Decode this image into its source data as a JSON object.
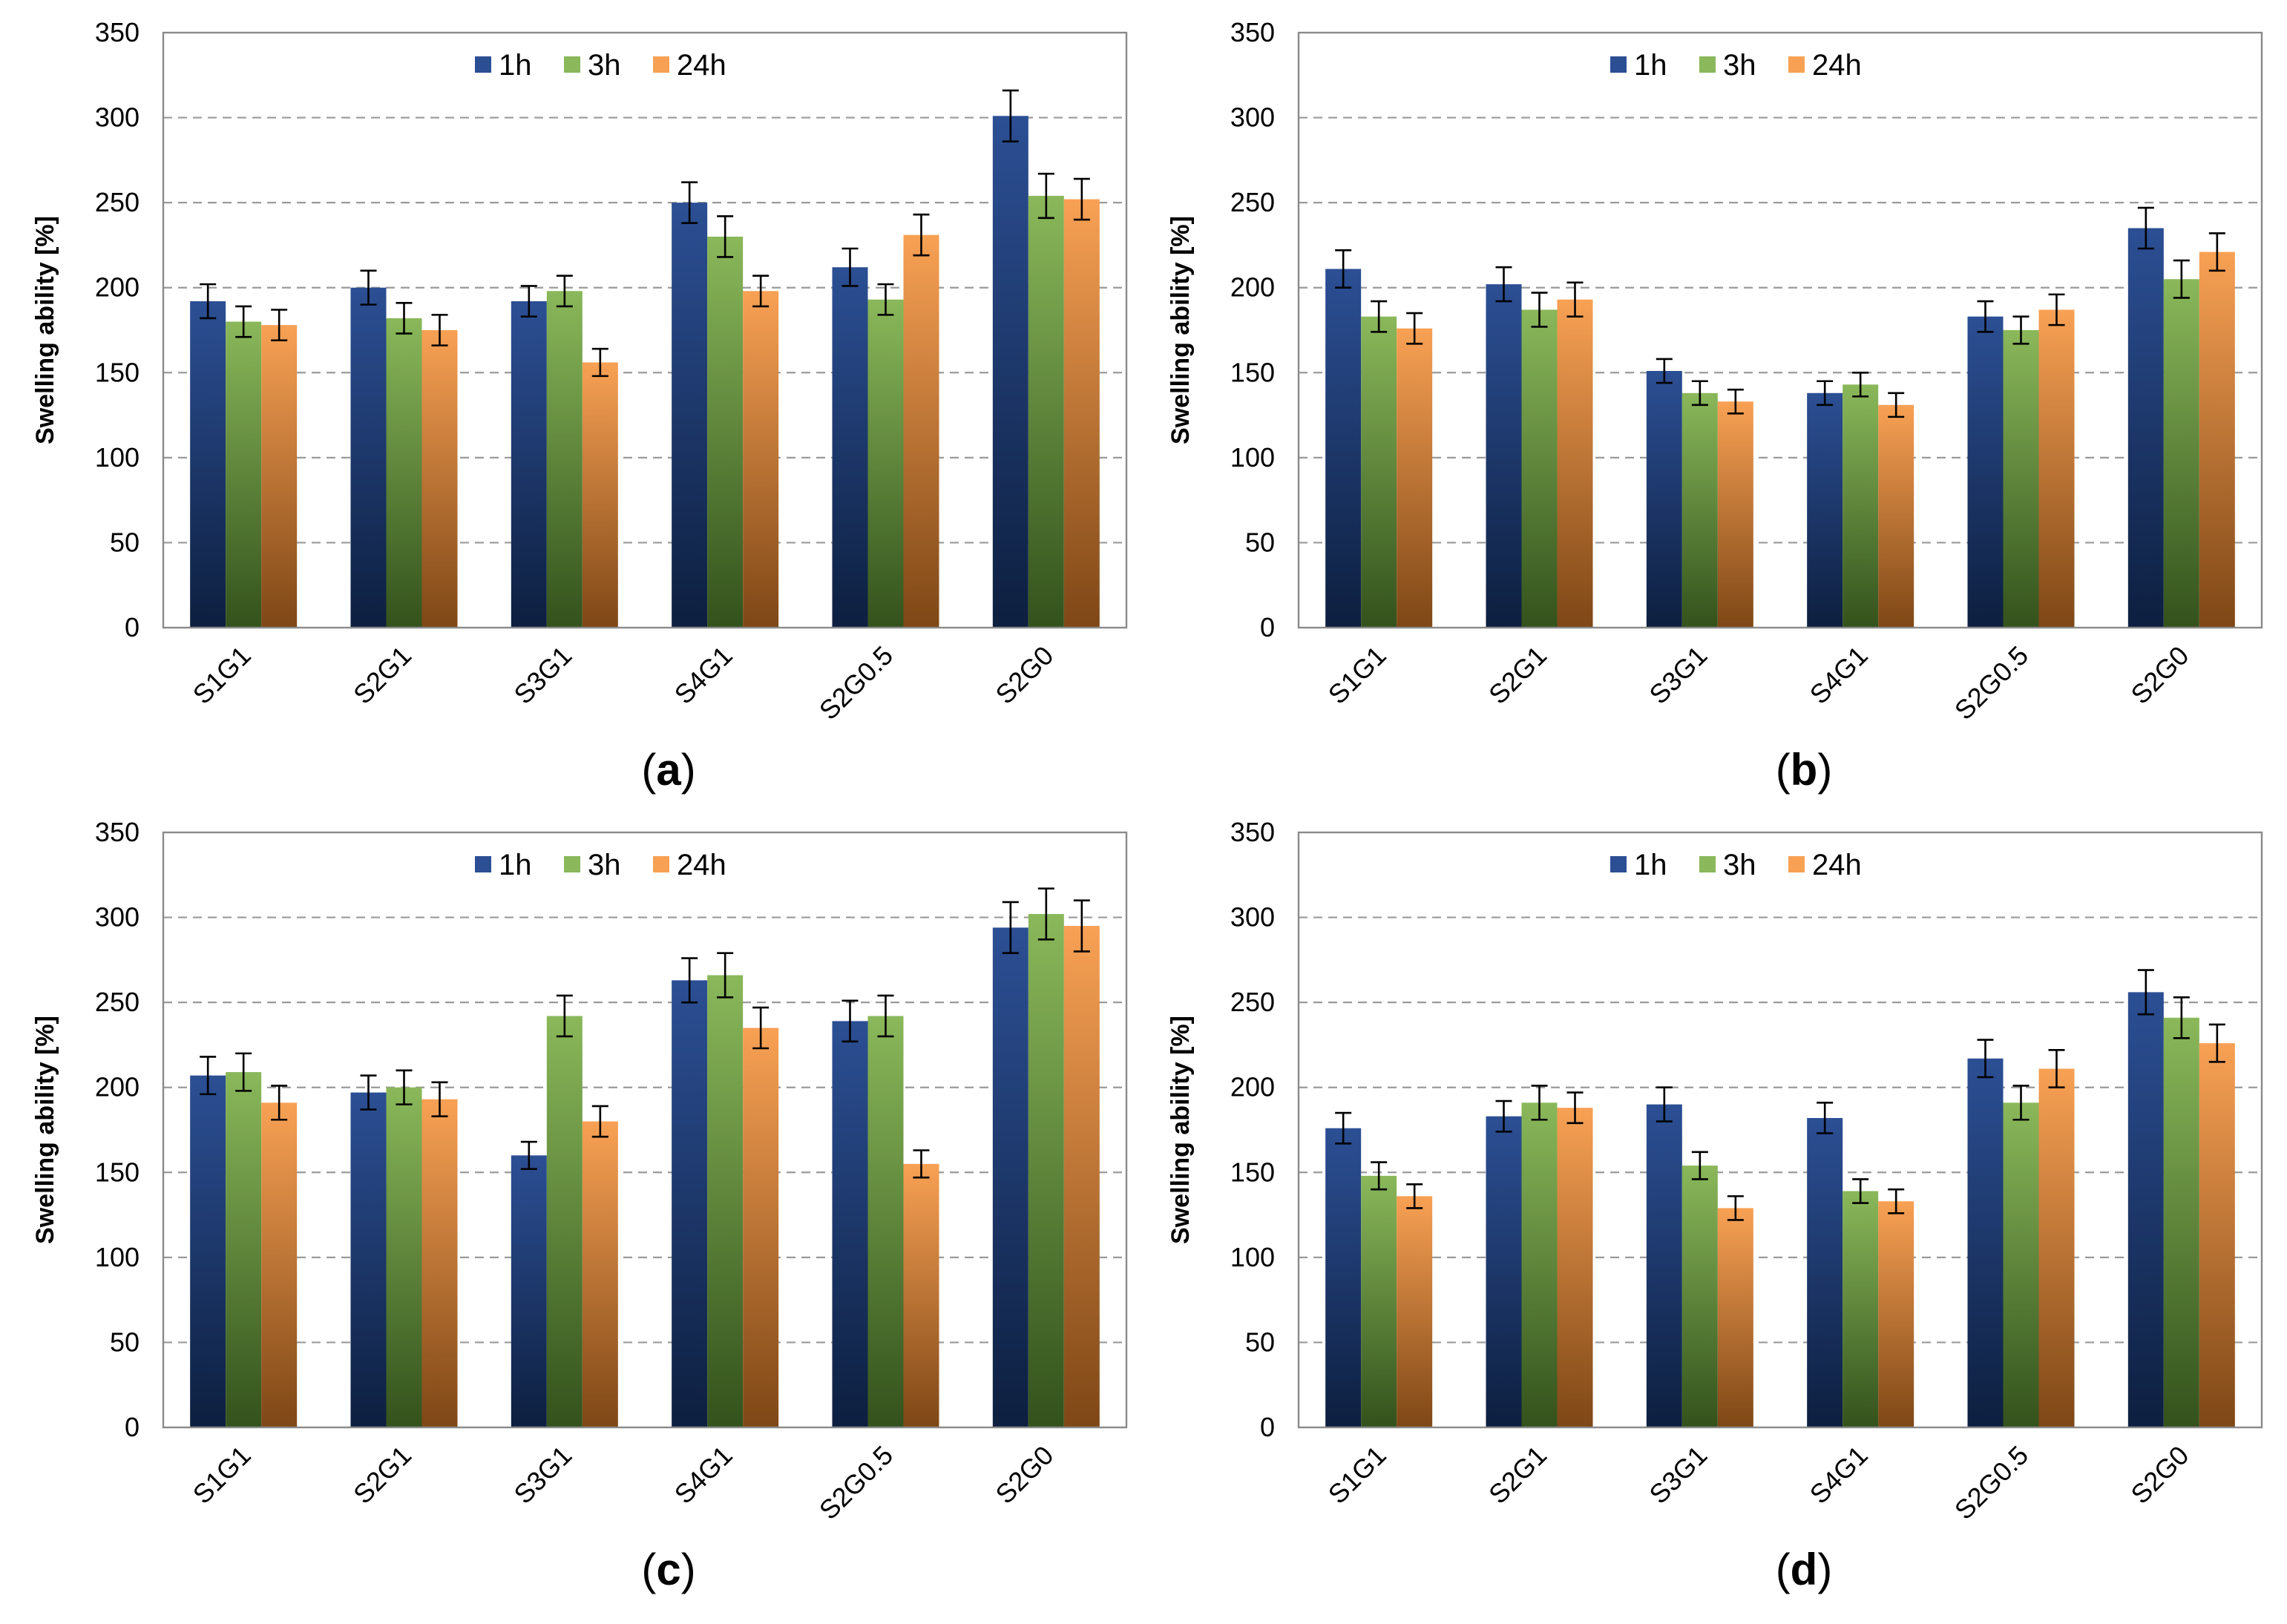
{
  "chart_data": [
    {
      "type": "bar",
      "panel": "(a)",
      "ylabel": "Swelling ability [%]",
      "ylim": [
        0,
        350
      ],
      "yticks": [
        0,
        50,
        100,
        150,
        200,
        250,
        300,
        350
      ],
      "grid": true,
      "legend_position": "top-center",
      "categories": [
        "S1G1",
        "S2G1",
        "S3G1",
        "S4G1",
        "S2G0.5",
        "S2G0"
      ],
      "series": [
        {
          "name": "1h",
          "values": [
            192,
            200,
            192,
            250,
            212,
            301
          ],
          "errors": [
            10,
            10,
            9,
            12,
            11,
            15
          ]
        },
        {
          "name": "3h",
          "values": [
            180,
            182,
            198,
            230,
            193,
            254
          ],
          "errors": [
            9,
            9,
            9,
            12,
            9,
            13
          ]
        },
        {
          "name": "24h",
          "values": [
            178,
            175,
            156,
            198,
            231,
            252
          ],
          "errors": [
            9,
            9,
            8,
            9,
            12,
            12
          ]
        }
      ]
    },
    {
      "type": "bar",
      "panel": "(b)",
      "ylabel": "Swelling ability [%]",
      "ylim": [
        0,
        350
      ],
      "yticks": [
        0,
        50,
        100,
        150,
        200,
        250,
        300,
        350
      ],
      "grid": true,
      "legend_position": "top-center",
      "categories": [
        "S1G1",
        "S2G1",
        "S3G1",
        "S4G1",
        "S2G0.5",
        "S2G0"
      ],
      "series": [
        {
          "name": "1h",
          "values": [
            211,
            202,
            151,
            138,
            183,
            235
          ],
          "errors": [
            11,
            10,
            7,
            7,
            9,
            12
          ]
        },
        {
          "name": "3h",
          "values": [
            183,
            187,
            138,
            143,
            175,
            205
          ],
          "errors": [
            9,
            10,
            7,
            7,
            8,
            11
          ]
        },
        {
          "name": "24h",
          "values": [
            176,
            193,
            133,
            131,
            187,
            221
          ],
          "errors": [
            9,
            10,
            7,
            7,
            9,
            11
          ]
        }
      ]
    },
    {
      "type": "bar",
      "panel": "(c)",
      "ylabel": "Swelling ability [%]",
      "ylim": [
        0,
        350
      ],
      "yticks": [
        0,
        50,
        100,
        150,
        200,
        250,
        300,
        350
      ],
      "grid": true,
      "legend_position": "top-center",
      "categories": [
        "S1G1",
        "S2G1",
        "S3G1",
        "S4G1",
        "S2G0.5",
        "S2G0"
      ],
      "series": [
        {
          "name": "1h",
          "values": [
            207,
            197,
            160,
            263,
            239,
            294
          ],
          "errors": [
            11,
            10,
            8,
            13,
            12,
            15
          ]
        },
        {
          "name": "3h",
          "values": [
            209,
            200,
            242,
            266,
            242,
            302
          ],
          "errors": [
            11,
            10,
            12,
            13,
            12,
            15
          ]
        },
        {
          "name": "24h",
          "values": [
            191,
            193,
            180,
            235,
            155,
            295
          ],
          "errors": [
            10,
            10,
            9,
            12,
            8,
            15
          ]
        }
      ]
    },
    {
      "type": "bar",
      "panel": "(d)",
      "ylabel": "Swelling ability [%]",
      "ylim": [
        0,
        350
      ],
      "yticks": [
        0,
        50,
        100,
        150,
        200,
        250,
        300,
        350
      ],
      "grid": true,
      "legend_position": "top-center",
      "categories": [
        "S1G1",
        "S2G1",
        "S3G1",
        "S4G1",
        "S2G0.5",
        "S2G0"
      ],
      "series": [
        {
          "name": "1h",
          "values": [
            176,
            183,
            190,
            182,
            217,
            256
          ],
          "errors": [
            9,
            9,
            10,
            9,
            11,
            13
          ]
        },
        {
          "name": "3h",
          "values": [
            148,
            191,
            154,
            139,
            191,
            241
          ],
          "errors": [
            8,
            10,
            8,
            7,
            10,
            12
          ]
        },
        {
          "name": "24h",
          "values": [
            136,
            188,
            129,
            133,
            211,
            226
          ],
          "errors": [
            7,
            9,
            7,
            7,
            11,
            11
          ]
        }
      ]
    }
  ],
  "colors": {
    "1h": {
      "top": "#2c4f94",
      "bottom": "#0d1f3f"
    },
    "3h": {
      "top": "#8ab85a",
      "bottom": "#33521c"
    },
    "24h": {
      "top": "#f8a154",
      "bottom": "#7e4716"
    }
  }
}
